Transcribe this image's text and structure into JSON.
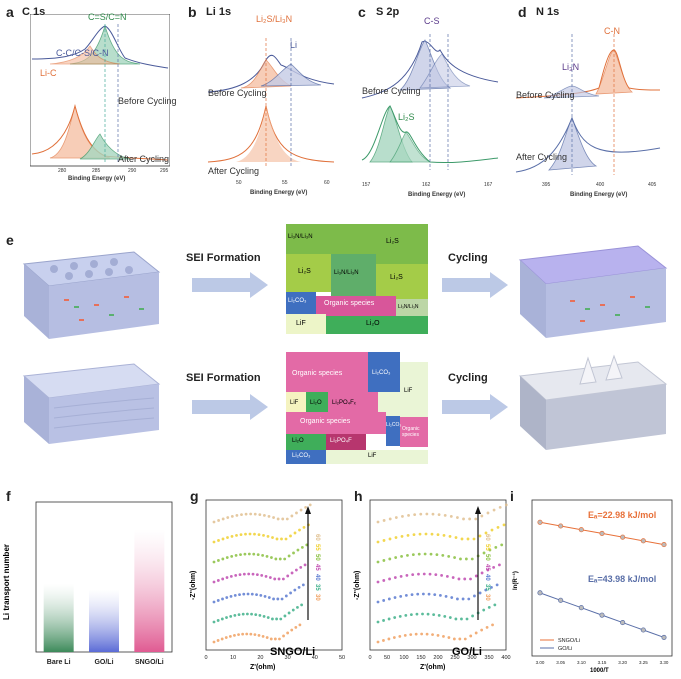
{
  "panel_labels": {
    "a": "a",
    "b": "b",
    "c": "c",
    "d": "d",
    "e": "e",
    "f": "f",
    "g": "g",
    "h": "h",
    "i": "i"
  },
  "xps": {
    "a": {
      "title": "C 1s",
      "labels": [
        "C=S/C=N",
        "C-C/C-S/C-N",
        "Li-C"
      ],
      "before": "Before Cycling",
      "after": "After Cycling",
      "xlabel": "Binding Energy (eV)",
      "ticks": [
        "280",
        "285",
        "290",
        "295"
      ]
    },
    "b": {
      "title": "Li 1s",
      "labels": [
        "Li₂S/Li₃N",
        "Li"
      ],
      "before": "Before Cycling",
      "after": "After Cycling",
      "xlabel": "Binding Energy (eV)",
      "ticks": [
        "50",
        "55",
        "60"
      ]
    },
    "c": {
      "title": "S 2p",
      "labels": [
        "C-S",
        "Li₂S"
      ],
      "before": "Before Cycling",
      "after": "After Cycling",
      "xlabel": "Binding Energy (eV)",
      "ticks": [
        "157",
        "162",
        "167"
      ]
    },
    "d": {
      "title": "N 1s",
      "labels": [
        "C-N",
        "Li₃N"
      ],
      "before": "Before Cycling",
      "after": "After Cycling",
      "xlabel": "Binding Energy (eV)",
      "ticks": [
        "395",
        "400",
        "405"
      ]
    }
  },
  "schematic": {
    "sei1": "SEI Formation",
    "sei2": "SEI Formation",
    "cyc1": "Cycling",
    "cyc2": "Cycling",
    "top_blocks": [
      "Li₃N/Li₃N",
      "Li₂S",
      "Li₂S",
      "Li₃N/Li₃N",
      "Li₂S",
      "Li₂CO₃",
      "Organic species",
      "Li₃N/Li₃N",
      "LiF",
      "Li₂O"
    ],
    "bot_blocks": [
      "Organic species",
      "Li₂CO₃",
      "LiF",
      "Li₂O",
      "Li₂PO₄Fₓ",
      "LiF",
      "Organic species",
      "Li₂CO₃",
      "Organic species",
      "Li₂O",
      "Li₂PO₄F",
      "Li₂CO₃",
      "LiF"
    ]
  },
  "chart_data": [
    {
      "panel": "f",
      "type": "bar",
      "categories": [
        "Bare Li",
        "GO/Li",
        "SNGO/Li"
      ],
      "values": [
        0.25,
        0.23,
        0.45
      ],
      "ylabel": "Li transport number",
      "colors": [
        "#3d8a5a",
        "#5b6bd6",
        "#e05b92"
      ],
      "ylim": [
        0,
        0.55
      ]
    },
    {
      "panel": "g",
      "type": "scatter",
      "xlabel": "Z'(ohm)",
      "ylabel": "-Z''(ohm)",
      "label": "SNGO/Li",
      "xticks": [
        "0",
        "10",
        "20",
        "30",
        "40",
        "50"
      ],
      "temps": [
        "60",
        "55",
        "50",
        "45",
        "40",
        "35",
        "30"
      ]
    },
    {
      "panel": "h",
      "type": "scatter",
      "xlabel": "Z'(ohm)",
      "ylabel": "-Z''(ohm)",
      "label": "GO/Li",
      "xticks": [
        "0",
        "50",
        "100",
        "150",
        "200",
        "250",
        "300",
        "350",
        "400"
      ],
      "temps": [
        "60",
        "55",
        "50",
        "45",
        "40",
        "35",
        "30"
      ]
    },
    {
      "panel": "i",
      "type": "line",
      "xlabel": "1000/T",
      "ylabel": "ln(R⁻¹)",
      "xticks": [
        "3.00",
        "3.05",
        "3.10",
        "3.15",
        "3.20",
        "3.25",
        "3.30"
      ],
      "series": [
        {
          "name": "SNGO/Li",
          "color": "#e8713a",
          "annotation": "Eₐ=22.98 kJ/mol",
          "x": [
            3.0,
            3.05,
            3.1,
            3.15,
            3.2,
            3.25,
            3.3
          ],
          "y": [
            -2.6,
            -2.7,
            -2.8,
            -2.9,
            -3.0,
            -3.1,
            -3.2
          ]
        },
        {
          "name": "GO/Li",
          "color": "#5a6fa8",
          "annotation": "Eₐ=43.98 kJ/mol",
          "x": [
            3.0,
            3.05,
            3.1,
            3.15,
            3.2,
            3.25,
            3.3
          ],
          "y": [
            -4.5,
            -4.7,
            -4.9,
            -5.1,
            -5.3,
            -5.5,
            -5.7
          ]
        }
      ]
    }
  ]
}
